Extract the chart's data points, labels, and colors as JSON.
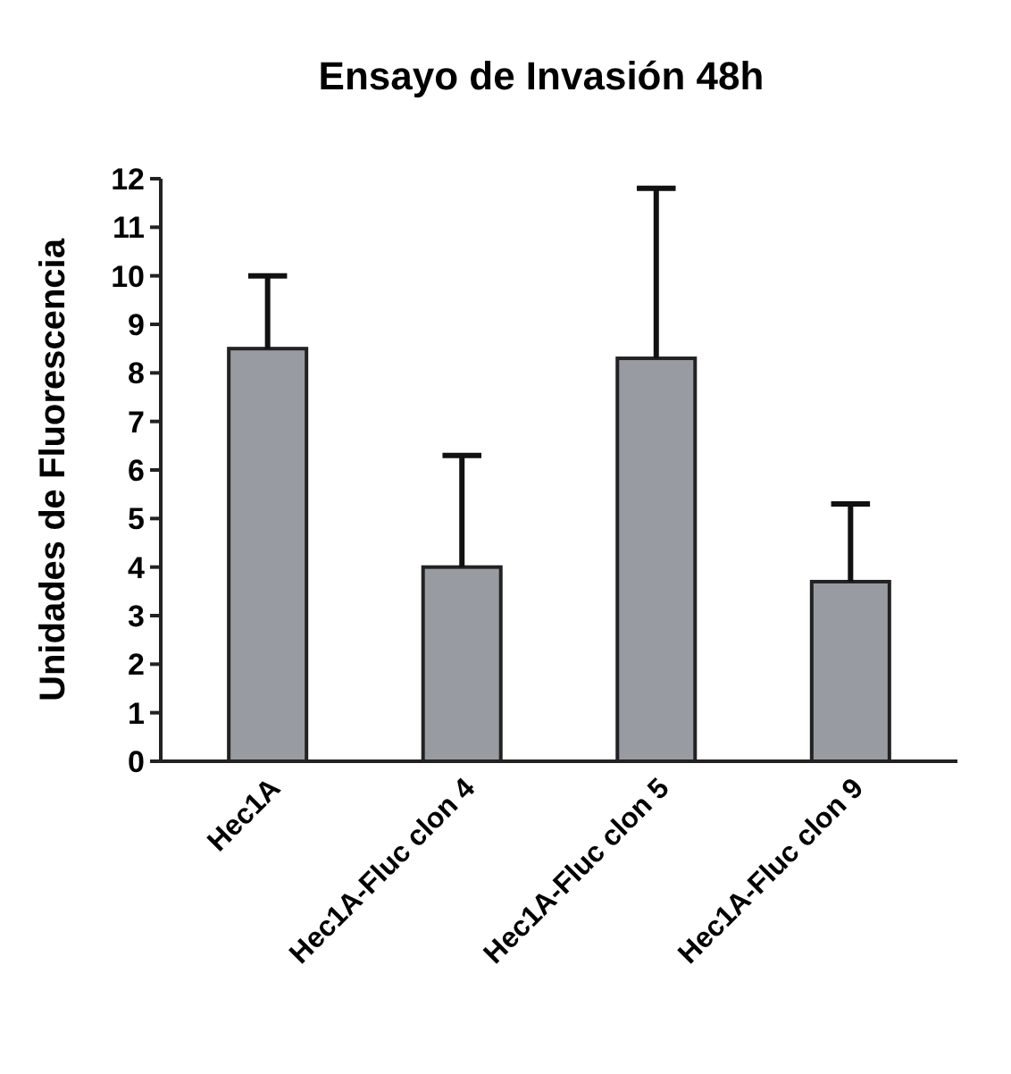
{
  "chart_data": {
    "type": "bar",
    "title": "Ensayo de Invasión 48h",
    "ylabel": "Unidades de Fluorescencia",
    "categories": [
      "Hec1A",
      "Hec1A-Fluc clon 4",
      "Hec1A-Fluc clon 5",
      "Hec1A-Fluc clon 9"
    ],
    "values": [
      8.5,
      4.0,
      8.3,
      3.7
    ],
    "errors": [
      [
        8.5,
        10.0
      ],
      [
        4.0,
        6.3
      ],
      [
        8.3,
        11.8
      ],
      [
        3.7,
        5.3
      ]
    ],
    "color": "#999ba2",
    "ylim": [
      0,
      12
    ],
    "yticks": [
      0,
      1,
      2,
      3,
      4,
      5,
      6,
      7,
      8,
      9,
      10,
      11,
      12
    ]
  }
}
